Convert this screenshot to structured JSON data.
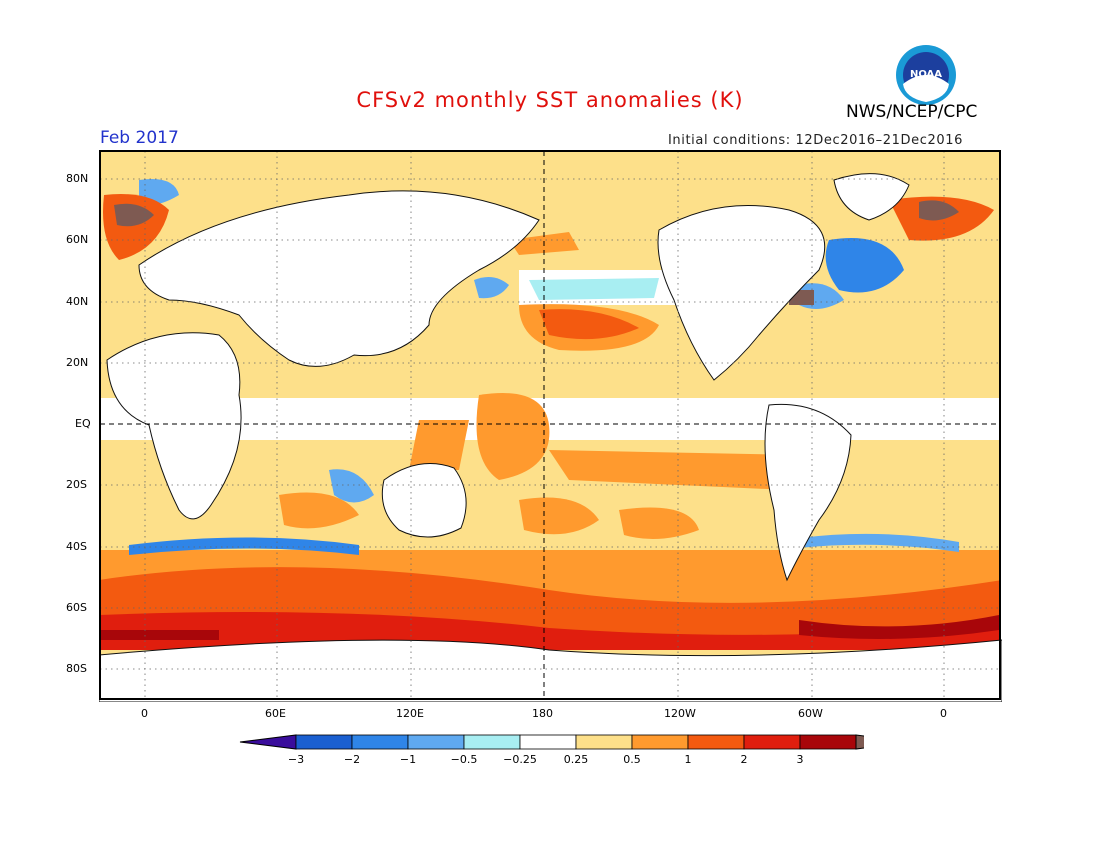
{
  "title": "CFSv2 monthly SST anomalies (K)",
  "agency": "NWS/NCEP/CPC",
  "logo_text": "NOAA",
  "valid_month": "Feb 2017",
  "initial_conditions": "Initial conditions: 12Dec2016–21Dec2016",
  "map": {
    "lat_labels": [
      "80N",
      "60N",
      "40N",
      "20N",
      "EQ",
      "20S",
      "40S",
      "60S",
      "80S"
    ],
    "lon_labels": [
      "0",
      "60E",
      "120E",
      "180",
      "120W",
      "60W",
      "0"
    ]
  },
  "colorbar": {
    "tick_labels": [
      "−3",
      "−2",
      "−1",
      "−0.5",
      "−0.25",
      "0.25",
      "0.5",
      "1",
      "2",
      "3"
    ],
    "colors": [
      "#3a0d9c",
      "#1a5fd0",
      "#2f85e8",
      "#5fa9f0",
      "#a8eef2",
      "#ffffff",
      "#fde08a",
      "#ff9a2e",
      "#f35a10",
      "#e01e0e",
      "#a8060a",
      "#7e5a52"
    ]
  },
  "colors": {
    "title": "#e0100c",
    "valid_month": "#2233cc",
    "land": "#ffffff",
    "grid": "#666666"
  }
}
